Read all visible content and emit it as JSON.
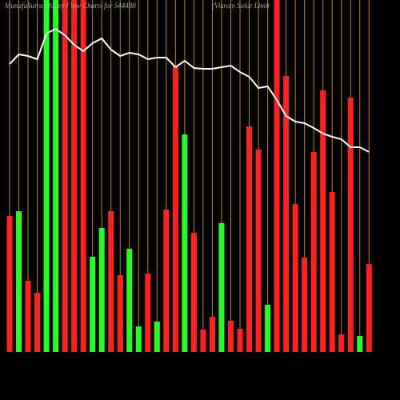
{
  "chart_data": {
    "type": "bar",
    "title": "MunafaSutra Money Flow Charts for 544488",
    "subtitle": "(Vikram Solar Limit",
    "ylim": [
      0,
      440
    ],
    "series": [
      {
        "name": "Money Flow",
        "type": "bar",
        "values": [
          170,
          176,
          89,
          74,
          440,
          440,
          440,
          440,
          440,
          119,
          155,
          176,
          96,
          129,
          32,
          98,
          38,
          178,
          358,
          272,
          149,
          28,
          44,
          161,
          39,
          29,
          282,
          253,
          59,
          440,
          345,
          185,
          118,
          250,
          327,
          200,
          22,
          318,
          20,
          110
        ],
        "colors": [
          "#ff2020",
          "#20ff20",
          "#ff2020",
          "#ff2020",
          "#20ff20",
          "#20ff20",
          "#ff2020",
          "#ff2020",
          "#ff2020",
          "#20ff20",
          "#20ff20",
          "#ff2020",
          "#ff2020",
          "#20ff20",
          "#20ff20",
          "#ff2020",
          "#20ff20",
          "#ff2020",
          "#ff2020",
          "#20ff20",
          "#ff2020",
          "#ff2020",
          "#ff2020",
          "#20ff20",
          "#ff2020",
          "#ff2020",
          "#ff2020",
          "#ff2020",
          "#20ff20",
          "#ff2020",
          "#ff2020",
          "#ff2020",
          "#ff2020",
          "#ff2020",
          "#ff2020",
          "#ff2020",
          "#ff2020",
          "#ff2020",
          "#20ff20",
          "#ff2020"
        ]
      },
      {
        "name": "Price",
        "type": "line",
        "color": "#ffffff",
        "values": [
          360,
          372,
          370,
          366,
          398,
          404,
          396,
          384,
          376,
          386,
          392,
          378,
          370,
          374,
          372,
          366,
          368,
          368,
          356,
          364,
          355,
          354,
          354,
          356,
          358,
          350,
          344,
          330,
          332,
          315,
          295,
          288,
          286,
          280,
          273,
          269,
          266,
          256,
          256,
          250
        ]
      }
    ],
    "gridline_color": "#b8860b"
  }
}
